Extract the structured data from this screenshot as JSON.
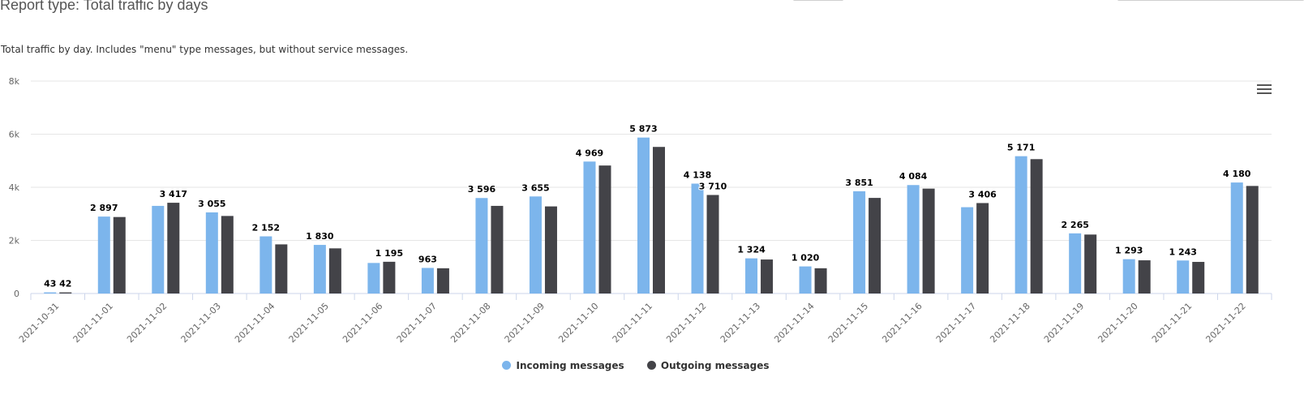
{
  "report": {
    "title": "Report type: Total traffic by days",
    "description": "Total traffic by day. Includes \"menu\" type messages, but without service messages."
  },
  "chart_menu": {
    "icon": "hamburger-menu-icon"
  },
  "chart_data": {
    "type": "bar",
    "categories": [
      "2021-10-31",
      "2021-11-01",
      "2021-11-02",
      "2021-11-03",
      "2021-11-04",
      "2021-11-05",
      "2021-11-06",
      "2021-11-07",
      "2021-11-08",
      "2021-11-09",
      "2021-11-10",
      "2021-11-11",
      "2021-11-12",
      "2021-11-13",
      "2021-11-14",
      "2021-11-15",
      "2021-11-16",
      "2021-11-17",
      "2021-11-18",
      "2021-11-19",
      "2021-11-20",
      "2021-11-21",
      "2021-11-22"
    ],
    "series": [
      {
        "name": "Incoming messages",
        "color": "#7cb5ec",
        "values": [
          43,
          2897,
          3300,
          3055,
          2152,
          1830,
          1150,
          963,
          3596,
          3655,
          4969,
          5873,
          4138,
          1324,
          1020,
          3851,
          4084,
          3250,
          5171,
          2265,
          1293,
          1243,
          4180
        ]
      },
      {
        "name": "Outgoing messages",
        "color": "#434348",
        "values": [
          42,
          2880,
          3417,
          2920,
          1850,
          1700,
          1195,
          950,
          3300,
          3280,
          4820,
          5520,
          3710,
          1280,
          950,
          3600,
          3950,
          3406,
          5060,
          2220,
          1250,
          1190,
          4050
        ]
      }
    ],
    "data_labels": [
      {
        "category_index": 0,
        "series_index": 0,
        "text": "43"
      },
      {
        "category_index": 0,
        "series_index": 1,
        "text": "42"
      },
      {
        "category_index": 1,
        "series_index": 0,
        "text": "2 897"
      },
      {
        "category_index": 2,
        "series_index": 1,
        "text": "3 417"
      },
      {
        "category_index": 3,
        "series_index": 0,
        "text": "3 055"
      },
      {
        "category_index": 4,
        "series_index": 0,
        "text": "2 152"
      },
      {
        "category_index": 5,
        "series_index": 0,
        "text": "1 830"
      },
      {
        "category_index": 6,
        "series_index": 1,
        "text": "1 195"
      },
      {
        "category_index": 7,
        "series_index": 0,
        "text": "963"
      },
      {
        "category_index": 8,
        "series_index": 0,
        "text": "3 596"
      },
      {
        "category_index": 9,
        "series_index": 0,
        "text": "3 655"
      },
      {
        "category_index": 10,
        "series_index": 0,
        "text": "4 969"
      },
      {
        "category_index": 11,
        "series_index": 0,
        "text": "5 873"
      },
      {
        "category_index": 12,
        "series_index": 0,
        "text": "4 138"
      },
      {
        "category_index": 12,
        "series_index": 1,
        "text": "3 710"
      },
      {
        "category_index": 13,
        "series_index": 0,
        "text": "1 324"
      },
      {
        "category_index": 14,
        "series_index": 0,
        "text": "1 020"
      },
      {
        "category_index": 15,
        "series_index": 0,
        "text": "3 851"
      },
      {
        "category_index": 16,
        "series_index": 0,
        "text": "4 084"
      },
      {
        "category_index": 17,
        "series_index": 1,
        "text": "3 406"
      },
      {
        "category_index": 18,
        "series_index": 0,
        "text": "5 171"
      },
      {
        "category_index": 19,
        "series_index": 0,
        "text": "2 265"
      },
      {
        "category_index": 20,
        "series_index": 0,
        "text": "1 293"
      },
      {
        "category_index": 21,
        "series_index": 0,
        "text": "1 243"
      },
      {
        "category_index": 22,
        "series_index": 0,
        "text": "4 180"
      }
    ],
    "y_ticks": [
      {
        "value": 0,
        "label": "0"
      },
      {
        "value": 2000,
        "label": "2k"
      },
      {
        "value": 4000,
        "label": "4k"
      },
      {
        "value": 6000,
        "label": "6k"
      },
      {
        "value": 8000,
        "label": "8k"
      }
    ],
    "ylim": [
      0,
      8000
    ],
    "xlabel": "",
    "ylabel": "",
    "grid": true,
    "legend_placement": "bottom-center"
  }
}
